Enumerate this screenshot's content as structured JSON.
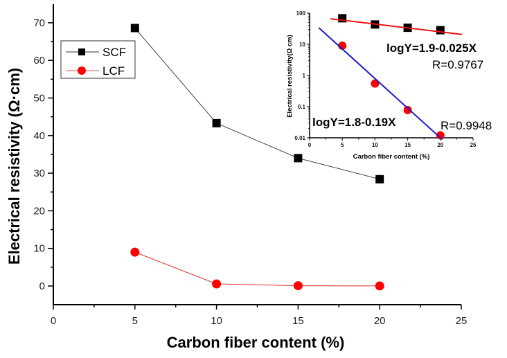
{
  "chart_data": [
    {
      "type": "line",
      "title": "",
      "xlabel": "Carbon fiber content (%)",
      "ylabel": "Electrical resistivity (Ω·cm)",
      "xlim": [
        0,
        25
      ],
      "ylim": [
        -5,
        75
      ],
      "xticks": [
        "0",
        "5",
        "10",
        "15",
        "20",
        "25"
      ],
      "yticks": [
        "0",
        "10",
        "20",
        "30",
        "40",
        "50",
        "60",
        "70"
      ],
      "x": [
        5,
        10,
        15,
        20
      ],
      "series": [
        {
          "name": "SCF",
          "color": "#000000",
          "marker": "square",
          "values": [
            68.6,
            43.3,
            34.0,
            28.4
          ]
        },
        {
          "name": "LCF",
          "color": "#ff0000",
          "marker": "circle",
          "values": [
            9.0,
            0.55,
            0.078,
            0.012
          ]
        }
      ],
      "legend": {
        "position": "upper-left",
        "entries": [
          "SCF",
          "LCF"
        ]
      },
      "grid": false
    },
    {
      "type": "scatter",
      "title": "",
      "xlabel": "Carbon fiber content (%)",
      "ylabel": "Electrical resistivity(Ω cm)",
      "yscale": "log",
      "xlim": [
        0,
        25
      ],
      "ylim": [
        0.01,
        100
      ],
      "xticks": [
        "0",
        "5",
        "10",
        "15",
        "20",
        "25"
      ],
      "yticks": [
        "0.01",
        "0.1",
        "1",
        "10",
        "100"
      ],
      "x": [
        5,
        10,
        15,
        20
      ],
      "series": [
        {
          "name": "SCF",
          "marker": "square",
          "color": "#000000",
          "values": [
            68.6,
            43.3,
            34.0,
            28.4
          ],
          "fit": {
            "equation": "logY=1.9-0.025X",
            "r": "R=0.9767",
            "color": "#ee1111"
          }
        },
        {
          "name": "LCF",
          "marker": "circle",
          "color": "#ff0000",
          "values": [
            9.0,
            0.55,
            0.078,
            0.012
          ],
          "fit": {
            "equation": "logY=1.8-0.19X",
            "r": "R=0.9948",
            "color": "#1a1acc"
          }
        }
      ],
      "annotations": [
        "logY=1.9-0.025X",
        "R=0.9767",
        "logY=1.8-0.19X",
        "R=0.9948"
      ],
      "grid": false
    }
  ]
}
